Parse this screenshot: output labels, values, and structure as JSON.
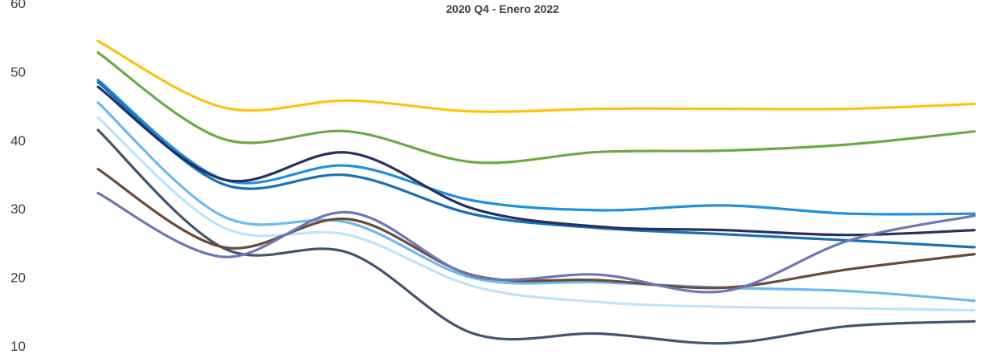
{
  "chart_data": {
    "type": "line",
    "title": "2020 Q4 - Enero 2022",
    "xlabel": "",
    "ylabel": "",
    "ylim": [
      10,
      60
    ],
    "yticks": [
      60,
      50,
      40,
      30,
      20,
      10
    ],
    "grid": false,
    "x": [
      1,
      2,
      3,
      4,
      5,
      6,
      7,
      8
    ],
    "series": [
      {
        "color": "#FFC20E",
        "values": [
          54.5,
          44.8,
          45.8,
          44.2,
          44.6,
          44.6,
          44.6,
          45.3
        ]
      },
      {
        "color": "#6AAA44",
        "values": [
          52.8,
          40.2,
          41.3,
          36.8,
          38.3,
          38.5,
          39.4,
          41.3
        ]
      },
      {
        "color": "#1F8FE0",
        "values": [
          48.8,
          34.3,
          36.3,
          31.2,
          29.8,
          30.5,
          29.3,
          29.3
        ]
      },
      {
        "color": "#1B6FB5",
        "values": [
          48.5,
          33.6,
          34.9,
          29.2,
          27.2,
          26.3,
          25.4,
          24.4
        ]
      },
      {
        "color": "#26305C",
        "values": [
          47.8,
          34.3,
          38.2,
          30.0,
          27.4,
          26.9,
          26.2,
          26.9
        ]
      },
      {
        "color": "#6CB9EE",
        "values": [
          45.5,
          28.9,
          28.0,
          19.9,
          19.3,
          18.5,
          18.0,
          16.6
        ]
      },
      {
        "color": "#BEE3FA",
        "values": [
          43.3,
          27.3,
          26.2,
          18.7,
          16.4,
          15.7,
          15.5,
          15.2
        ]
      },
      {
        "color": "#44546A",
        "values": [
          41.5,
          24.3,
          23.6,
          11.8,
          11.8,
          10.4,
          12.9,
          13.6
        ]
      },
      {
        "color": "#6B4A3A",
        "values": [
          35.8,
          24.4,
          28.5,
          20.3,
          19.6,
          18.5,
          21.2,
          23.4
        ]
      },
      {
        "color": "#6E76B4",
        "values": [
          32.3,
          23.0,
          29.5,
          20.2,
          20.4,
          18.0,
          25.4,
          29.0
        ]
      }
    ]
  }
}
